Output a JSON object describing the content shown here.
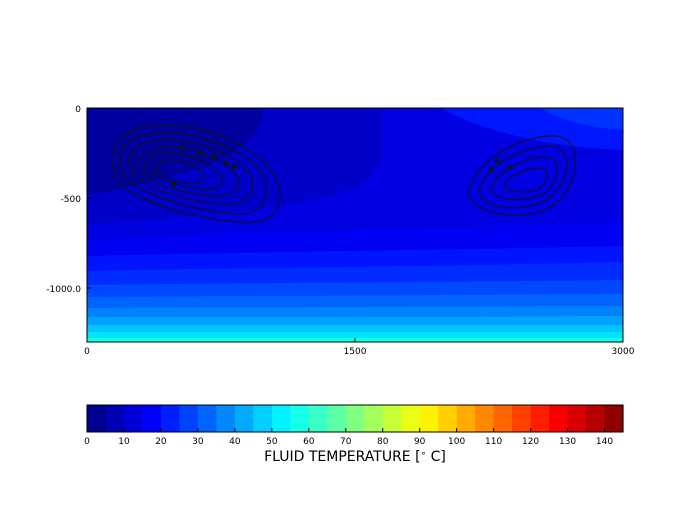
{
  "chart_data": {
    "type": "contour",
    "plot": {
      "x_ticks": [
        "0",
        "1500",
        "3000"
      ],
      "y_ticks": [
        "0",
        "-500",
        "-1000.0"
      ],
      "xlim": [
        0,
        3000
      ],
      "ylim": [
        -1300,
        0
      ],
      "field": "fluid temperature (filled contours, increasing with depth)",
      "streamline_groups": [
        {
          "name": "left-convection-cell",
          "center": [
            470,
            -340
          ],
          "rings": 6
        },
        {
          "name": "right-convection-cell",
          "center": [
            2440,
            -360
          ],
          "rings": 4
        }
      ]
    },
    "colorbar": {
      "label": "FLUID TEMPERATURE [$^\\circ$C]",
      "label_prefix": "FLUID TEMPERATURE [",
      "label_degree": "∘",
      "label_suffix": " C]",
      "range": [
        0,
        145
      ],
      "step": 5,
      "tick_values": [
        "0",
        "10",
        "20",
        "30",
        "40",
        "50",
        "60",
        "70",
        "80",
        "90",
        "100",
        "110",
        "120",
        "130",
        "140"
      ],
      "colormap": "jet"
    }
  }
}
